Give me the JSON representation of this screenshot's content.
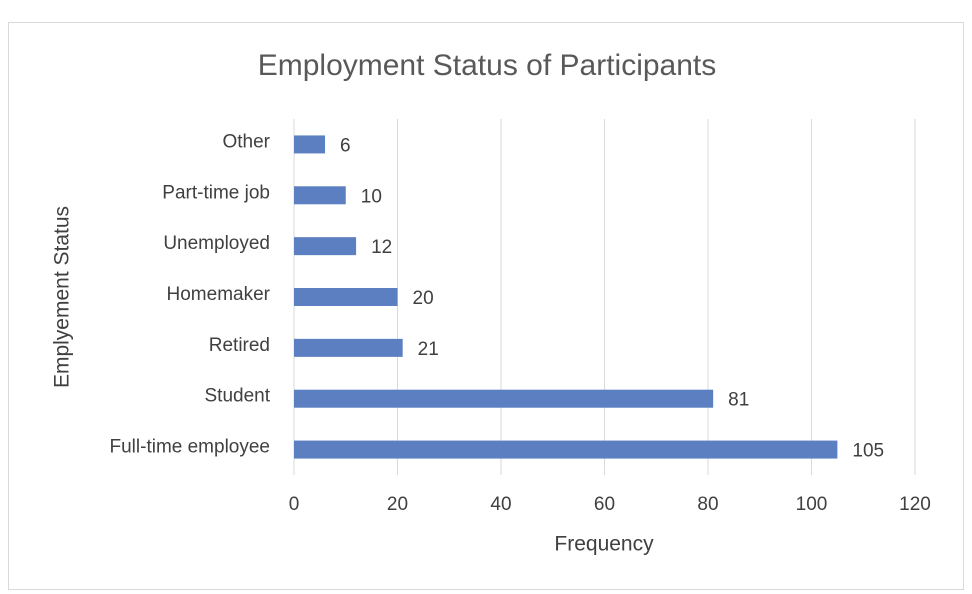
{
  "chart_data": {
    "type": "hbar",
    "title": "Employment Status of Participants",
    "categories": [
      "Other",
      "Part-time job",
      "Unemployed",
      "Homemaker",
      "Retired",
      "Student",
      "Full-time employee"
    ],
    "values": [
      6,
      10,
      12,
      20,
      21,
      81,
      105
    ],
    "color": "#5b7fc0",
    "xlabel": "Frequency",
    "ylabel": "Emplyement Status",
    "xlim": [
      0,
      120
    ],
    "xticks": [
      0,
      20,
      40,
      60,
      80,
      100,
      120
    ],
    "grid": true
  }
}
